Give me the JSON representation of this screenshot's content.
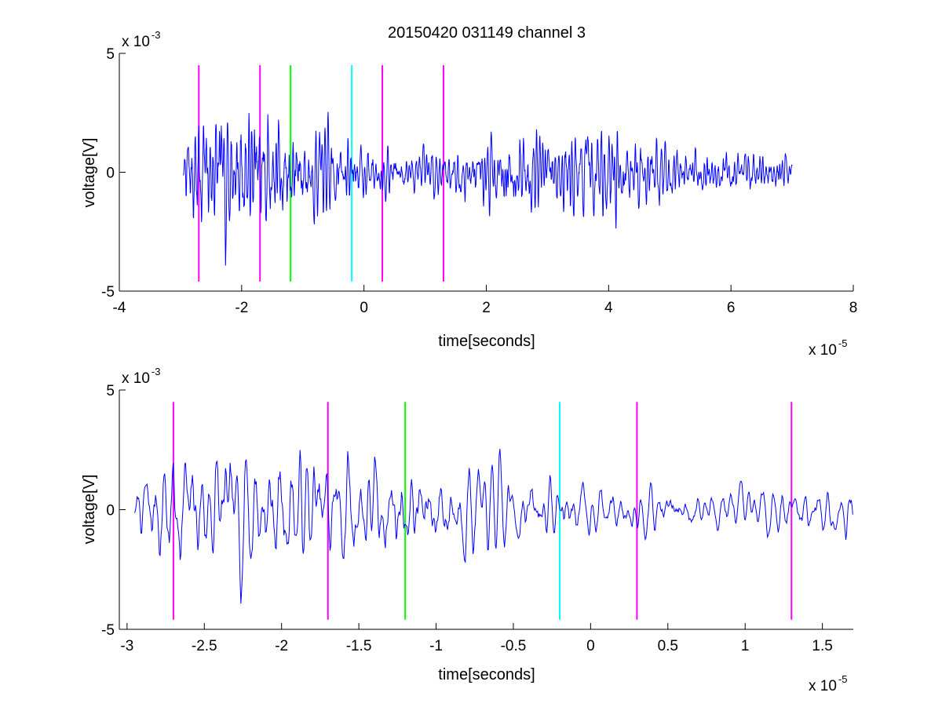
{
  "figure_title": "20150420 031149 channel 3",
  "chart_data": [
    {
      "type": "line",
      "title": "20150420 031149 channel 3",
      "xlabel": "time[seconds]",
      "ylabel": "voltage[V]",
      "xlim": [
        -4,
        8
      ],
      "ylim": [
        -5,
        5
      ],
      "x_scale_label": "x 10",
      "x_scale_exponent": "-5",
      "y_scale_label": "x 10",
      "y_scale_exponent": "-3",
      "x_ticks": [
        "-4",
        "-2",
        "0",
        "2",
        "4",
        "6",
        "8"
      ],
      "y_ticks": [
        "-5",
        "0",
        "5"
      ],
      "signal_color": "#0000ff",
      "signal_x_range": [
        -2.95,
        7.0
      ],
      "signal_seed": 7,
      "envelope": [
        [
          -2.95,
          1.0
        ],
        [
          -2.75,
          2.9
        ],
        [
          -2.5,
          2.8
        ],
        [
          -2.0,
          2.6
        ],
        [
          -1.5,
          2.5
        ],
        [
          -1.0,
          2.0
        ],
        [
          -0.5,
          1.5
        ],
        [
          0.0,
          1.0
        ],
        [
          0.5,
          0.9
        ],
        [
          1.0,
          0.8
        ],
        [
          1.5,
          1.0
        ],
        [
          1.9,
          1.2
        ],
        [
          2.5,
          1.7
        ],
        [
          3.0,
          1.8
        ],
        [
          3.5,
          1.6
        ],
        [
          4.0,
          2.0
        ],
        [
          4.5,
          1.5
        ],
        [
          5.0,
          1.2
        ],
        [
          5.5,
          1.0
        ],
        [
          6.0,
          0.9
        ],
        [
          6.5,
          0.8
        ],
        [
          7.0,
          0.8
        ]
      ],
      "markers": [
        {
          "x": -2.7,
          "color": "#ff00ff"
        },
        {
          "x": -1.7,
          "color": "#ff00ff"
        },
        {
          "x": -1.2,
          "color": "#00ff00"
        },
        {
          "x": -0.2,
          "color": "#00ffff"
        },
        {
          "x": 0.3,
          "color": "#ff00ff"
        },
        {
          "x": 1.3,
          "color": "#ff00ff"
        }
      ],
      "marker_y_range": [
        -4.6,
        4.5
      ]
    },
    {
      "type": "line",
      "xlabel": "time[seconds]",
      "ylabel": "voltage[V]",
      "xlim": [
        -3.05,
        1.7
      ],
      "ylim": [
        -5,
        5
      ],
      "x_scale_label": "x 10",
      "x_scale_exponent": "-5",
      "y_scale_label": "x 10",
      "y_scale_exponent": "-3",
      "x_ticks": [
        "-3",
        "-2.5",
        "-2",
        "-1.5",
        "-1",
        "-0.5",
        "0",
        "0.5",
        "1",
        "1.5"
      ],
      "x_tick_values": [
        -3,
        -2.5,
        -2,
        -1.5,
        -1,
        -0.5,
        0,
        0.5,
        1,
        1.5
      ],
      "y_ticks": [
        "-5",
        "0",
        "5"
      ],
      "signal_color": "#0000ff",
      "signal_x_range": [
        -2.95,
        1.7
      ],
      "signal_seed": 7,
      "envelope": [
        [
          -2.95,
          1.0
        ],
        [
          -2.75,
          2.9
        ],
        [
          -2.5,
          2.8
        ],
        [
          -2.0,
          2.6
        ],
        [
          -1.5,
          2.5
        ],
        [
          -1.0,
          2.0
        ],
        [
          -0.5,
          1.5
        ],
        [
          0.0,
          1.0
        ],
        [
          0.5,
          0.9
        ],
        [
          1.0,
          0.8
        ],
        [
          1.5,
          1.0
        ],
        [
          1.7,
          1.0
        ]
      ],
      "markers": [
        {
          "x": -2.7,
          "color": "#ff00ff"
        },
        {
          "x": -1.7,
          "color": "#ff00ff"
        },
        {
          "x": -1.2,
          "color": "#00ff00"
        },
        {
          "x": -0.2,
          "color": "#00ffff"
        },
        {
          "x": 0.3,
          "color": "#ff00ff"
        },
        {
          "x": 1.3,
          "color": "#ff00ff"
        }
      ],
      "marker_y_range": [
        -4.6,
        4.5
      ]
    }
  ]
}
